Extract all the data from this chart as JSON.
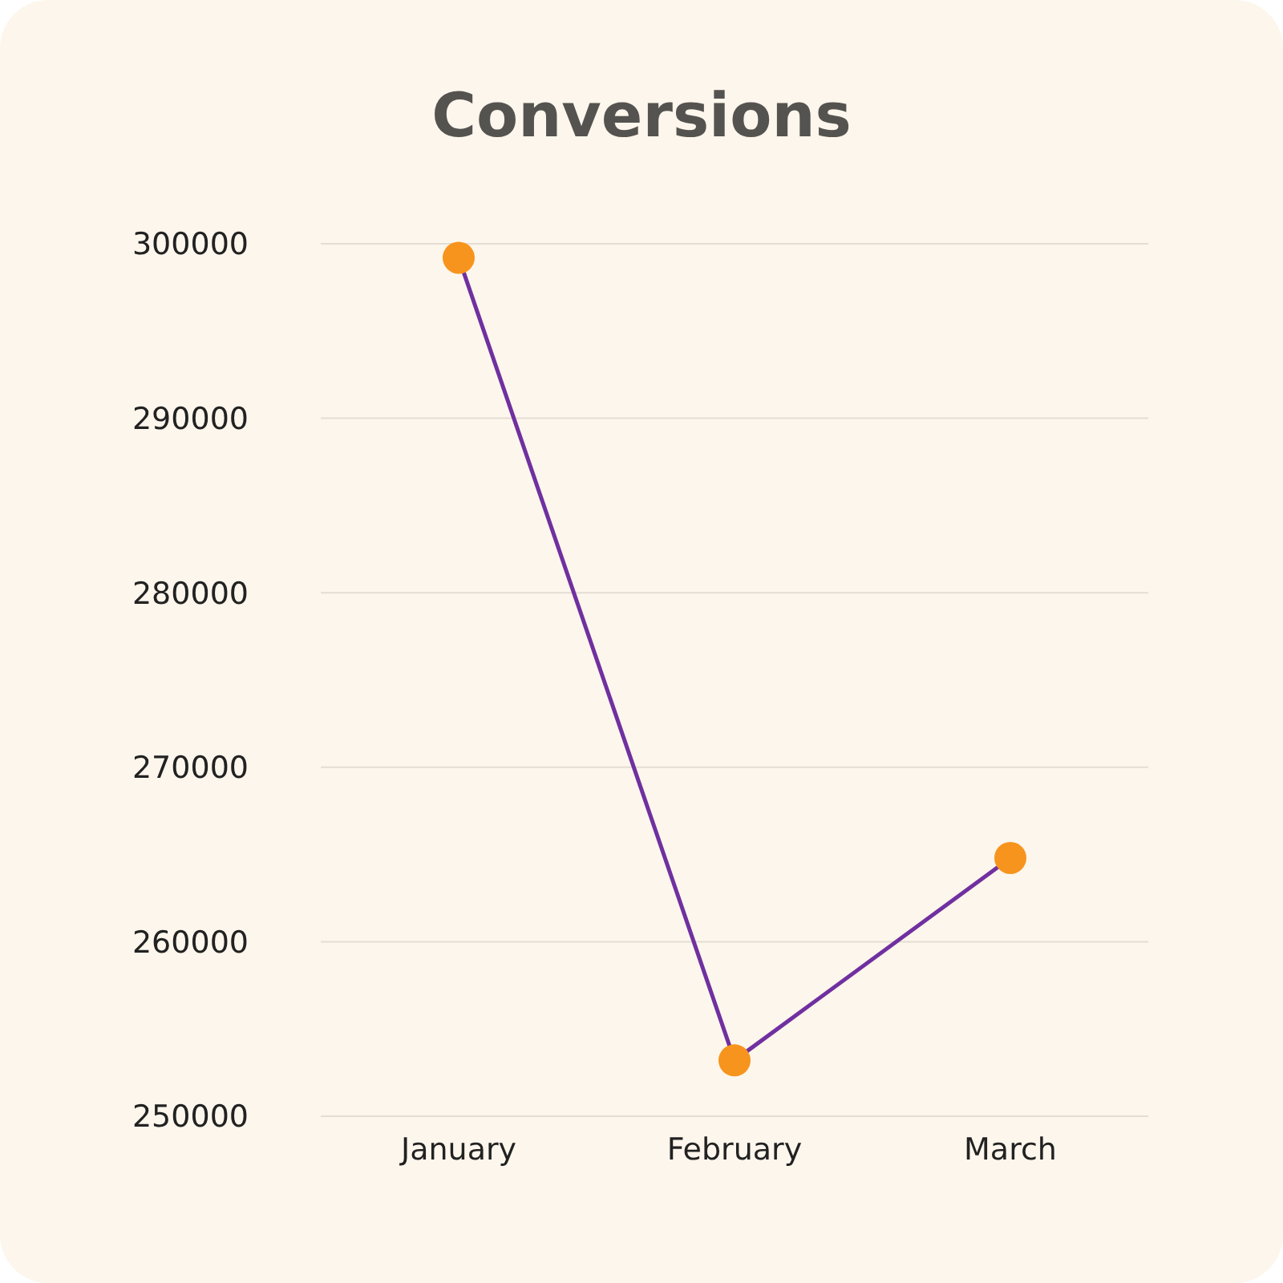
{
  "chart_data": {
    "type": "line",
    "title": "Conversions",
    "categories": [
      "January",
      "February",
      "March"
    ],
    "series": [
      {
        "color": "#7030a0",
        "colors": [
          "#f7941d",
          "#f7941d",
          "#f7941d"
        ],
        "values": [
          299200,
          253200,
          264800
        ]
      }
    ],
    "ylim": [
      250000,
      300000
    ],
    "yticks": [
      250000,
      260000,
      270000,
      280000,
      290000,
      300000
    ],
    "grid": "y",
    "marker": "circle",
    "line_style": "solid"
  }
}
